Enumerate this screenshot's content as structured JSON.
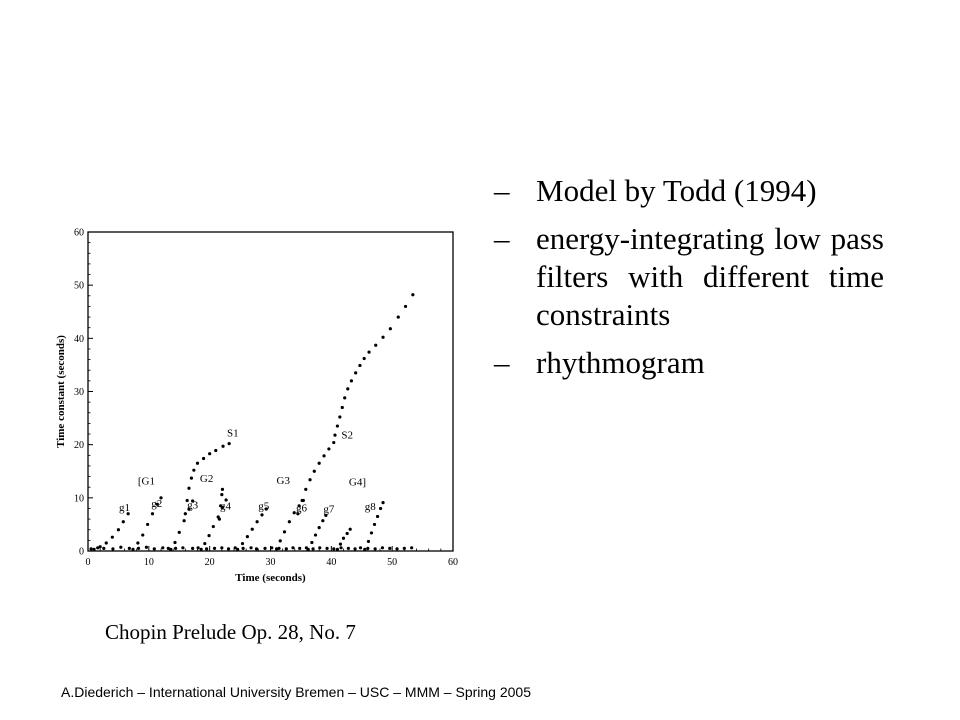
{
  "bullets": [
    {
      "marker": "–",
      "text": "Model by Todd (1994)"
    },
    {
      "marker": "–",
      "text": "energy-integrating low pass filters with different time constraints"
    },
    {
      "marker": "–",
      "text": "rhythmogram"
    }
  ],
  "caption": "Chopin Prelude Op. 28, No. 7",
  "footer": "A.Diederich – International University Bremen – USC – MMM – Spring 2005",
  "colors": {
    "ink": "#000000",
    "background": "#ffffff"
  },
  "chart_data": {
    "type": "scatter",
    "title": "",
    "xlabel": "Time (seconds)",
    "ylabel": "Time constant (seconds)",
    "xlim": [
      0,
      60
    ],
    "ylim": [
      0,
      60
    ],
    "xticks": [
      0,
      10,
      20,
      30,
      40,
      50,
      60
    ],
    "yticks": [
      0,
      10,
      20,
      30,
      40,
      50,
      60
    ],
    "grid": false,
    "series": [
      {
        "points": [
          [
            1,
            0.3
          ],
          [
            2,
            0.8
          ],
          [
            3,
            1.5
          ],
          [
            4,
            2.6
          ],
          [
            5,
            4
          ],
          [
            5.8,
            5.5
          ],
          [
            6.6,
            7
          ]
        ]
      },
      {
        "points": [
          [
            7.4,
            0.3
          ],
          [
            8.2,
            1.5
          ],
          [
            9,
            3
          ],
          [
            9.8,
            5
          ],
          [
            10.6,
            7
          ],
          [
            11.4,
            8.8
          ],
          [
            12,
            10
          ]
        ]
      },
      {
        "points": [
          [
            13.6,
            0.3
          ],
          [
            14.3,
            1.6
          ],
          [
            15,
            3.5
          ],
          [
            15.8,
            5.7
          ],
          [
            16.6,
            7.9
          ],
          [
            17.2,
            9.4
          ]
        ]
      },
      {
        "points": [
          [
            16,
            7
          ],
          [
            16.3,
            9.5
          ],
          [
            16.6,
            11.8
          ],
          [
            17,
            13.7
          ],
          [
            17.4,
            15.2
          ],
          [
            18,
            16.5
          ],
          [
            19,
            17.4
          ],
          [
            20,
            18.3
          ],
          [
            21,
            18.9
          ],
          [
            22.2,
            19.7
          ],
          [
            23.2,
            20.2
          ]
        ]
      },
      {
        "points": [
          [
            18.6,
            0.3
          ],
          [
            19.2,
            1.4
          ],
          [
            19.9,
            2.9
          ],
          [
            20.6,
            4.6
          ],
          [
            21.4,
            6.4
          ],
          [
            22.1,
            8.2
          ],
          [
            22.7,
            9.6
          ]
        ]
      },
      {
        "points": [
          [
            21.6,
            6
          ],
          [
            21.8,
            8.5
          ],
          [
            22,
            10.6
          ],
          [
            22.1,
            11.6
          ]
        ]
      },
      {
        "points": [
          [
            24.6,
            0.3
          ],
          [
            25.4,
            1.4
          ],
          [
            26.2,
            2.7
          ],
          [
            27,
            4.1
          ],
          [
            27.8,
            5.5
          ],
          [
            28.6,
            6.8
          ],
          [
            29.3,
            7.9
          ]
        ]
      },
      {
        "points": [
          [
            31,
            0.4
          ],
          [
            31.6,
            1.9
          ],
          [
            32.3,
            3.6
          ],
          [
            33.1,
            5.5
          ],
          [
            33.9,
            7.2
          ],
          [
            34.7,
            8.5
          ],
          [
            35.4,
            9.5
          ]
        ]
      },
      {
        "points": [
          [
            34.5,
            7
          ],
          [
            35.2,
            9.5
          ],
          [
            35.8,
            11.6
          ],
          [
            36.5,
            13.4
          ],
          [
            37.2,
            15
          ],
          [
            38,
            16.5
          ],
          [
            38.8,
            17.9
          ],
          [
            39.6,
            19.2
          ],
          [
            40.4,
            20.4
          ]
        ]
      },
      {
        "points": [
          [
            40.6,
            21.8
          ],
          [
            41,
            23.5
          ],
          [
            41.4,
            25.2
          ],
          [
            41.8,
            27
          ],
          [
            42.2,
            28.8
          ],
          [
            42.7,
            30.5
          ],
          [
            43.3,
            32
          ],
          [
            44,
            33.5
          ],
          [
            44.7,
            34.9
          ],
          [
            45.4,
            36.2
          ],
          [
            46.2,
            37.4
          ],
          [
            47.3,
            38.7
          ],
          [
            48.5,
            40.2
          ],
          [
            49.7,
            41.8
          ],
          [
            51,
            44
          ],
          [
            52.2,
            46
          ],
          [
            53.4,
            48.2
          ]
        ]
      },
      {
        "points": [
          [
            36.2,
            0.3
          ],
          [
            36.8,
            1.6
          ],
          [
            37.4,
            3
          ],
          [
            38,
            4.4
          ],
          [
            38.6,
            5.7
          ],
          [
            39.1,
            6.7
          ]
        ]
      },
      {
        "points": [
          [
            41,
            0.3
          ],
          [
            41.5,
            1.3
          ],
          [
            42,
            2.4
          ],
          [
            42.6,
            3.3
          ],
          [
            43.1,
            4.1
          ]
        ]
      },
      {
        "points": [
          [
            45.5,
            0.3
          ],
          [
            46.1,
            1.8
          ],
          [
            46.6,
            3.4
          ],
          [
            47.1,
            5
          ],
          [
            47.6,
            6.5
          ],
          [
            48.1,
            8
          ],
          [
            48.5,
            9.1
          ]
        ]
      },
      {
        "points": [
          [
            0.5,
            0.4
          ],
          [
            1.6,
            0.6
          ],
          [
            2.6,
            0.5
          ],
          [
            4.1,
            0.4
          ],
          [
            5.4,
            0.7
          ],
          [
            6.8,
            0.5
          ],
          [
            8.3,
            0.5
          ],
          [
            9.6,
            0.7
          ],
          [
            10.9,
            0.4
          ],
          [
            12.3,
            0.6
          ],
          [
            13.2,
            0.5
          ],
          [
            14.4,
            0.5
          ],
          [
            15.6,
            0.6
          ],
          [
            17.2,
            0.5
          ],
          [
            18.1,
            0.6
          ],
          [
            19.5,
            0.4
          ],
          [
            20.8,
            0.5
          ],
          [
            22,
            0.6
          ],
          [
            23.1,
            0.4
          ],
          [
            24.2,
            0.6
          ],
          [
            25.5,
            0.5
          ],
          [
            26.8,
            0.6
          ],
          [
            27.7,
            0.4
          ],
          [
            29.1,
            0.5
          ],
          [
            30.2,
            0.6
          ],
          [
            31.4,
            0.5
          ],
          [
            32.6,
            0.4
          ],
          [
            33.7,
            0.6
          ],
          [
            34.8,
            0.5
          ],
          [
            35.9,
            0.6
          ],
          [
            37,
            0.4
          ],
          [
            38.1,
            0.6
          ],
          [
            39.3,
            0.5
          ],
          [
            40.4,
            0.4
          ],
          [
            41.6,
            0.6
          ],
          [
            42.8,
            0.5
          ],
          [
            43.9,
            0.4
          ],
          [
            44.8,
            0.6
          ],
          [
            46,
            0.5
          ],
          [
            47.2,
            0.4
          ],
          [
            48.4,
            0.6
          ],
          [
            49.6,
            0.5
          ],
          [
            50.8,
            0.4
          ],
          [
            52,
            0.5
          ],
          [
            53.2,
            0.6
          ]
        ]
      }
    ],
    "annotations": [
      {
        "text": "g1",
        "x": 6.0,
        "y": 7.5
      },
      {
        "text": "g2",
        "x": 11.3,
        "y": 8.3
      },
      {
        "text": "g3",
        "x": 17.2,
        "y": 8.0
      },
      {
        "text": "g4",
        "x": 22.6,
        "y": 7.8
      },
      {
        "text": "g5",
        "x": 28.9,
        "y": 7.8
      },
      {
        "text": "g6",
        "x": 35.1,
        "y": 7.4
      },
      {
        "text": "g7",
        "x": 39.6,
        "y": 7.2
      },
      {
        "text": "g8",
        "x": 46.4,
        "y": 7.7
      },
      {
        "text": "[G1",
        "x": 9.6,
        "y": 12.5
      },
      {
        "text": "G2",
        "x": 19.5,
        "y": 13.0
      },
      {
        "text": "G3",
        "x": 32.1,
        "y": 12.6
      },
      {
        "text": "G4]",
        "x": 44.3,
        "y": 12.3
      },
      {
        "text": "S1",
        "x": 23.8,
        "y": 21.5
      },
      {
        "text": "S2",
        "x": 42.6,
        "y": 21.2
      }
    ]
  }
}
